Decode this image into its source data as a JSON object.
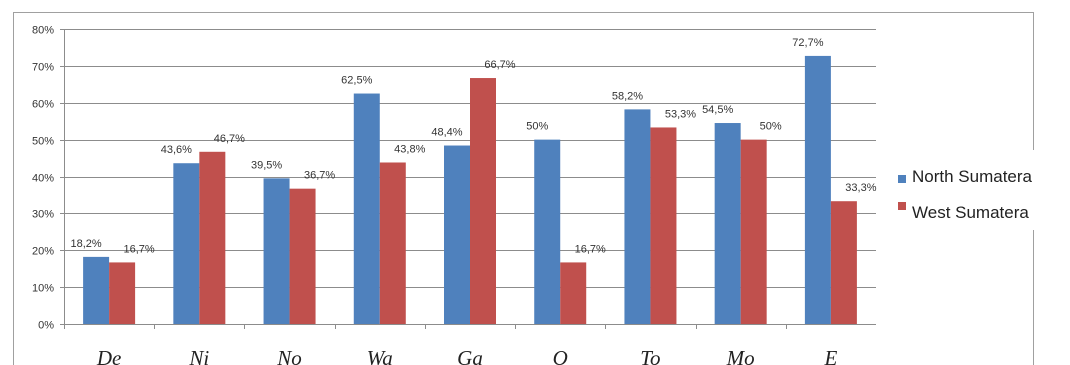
{
  "chart_data": {
    "type": "bar",
    "title": "",
    "xlabel": "",
    "ylabel": "",
    "categories": [
      "De",
      "Ni",
      "No",
      "Wa",
      "Ga",
      "O",
      "To",
      "Mo",
      "E"
    ],
    "series": [
      {
        "name": "North Sumatera",
        "color": "#4F81BD",
        "values": [
          18.2,
          43.6,
          39.5,
          62.5,
          48.4,
          50,
          58.2,
          54.5,
          72.7
        ],
        "labels": [
          "18,2%",
          "43,6%",
          "39,5%",
          "62,5%",
          "48,4%",
          "50%",
          "58,2%",
          "54,5%",
          "72,7%"
        ]
      },
      {
        "name": "West Sumatera",
        "color": "#C0504D",
        "values": [
          16.7,
          46.7,
          36.7,
          43.8,
          66.7,
          16.7,
          53.3,
          50,
          33.3
        ],
        "labels": [
          "16,7%",
          "46,7%",
          "36,7%",
          "43,8%",
          "66,7%",
          "16,7%",
          "53,3%",
          "50%",
          "33,3%"
        ]
      }
    ],
    "ylim": [
      0,
      80
    ],
    "yticks": [
      0,
      10,
      20,
      30,
      40,
      50,
      60,
      70,
      80
    ],
    "ytick_labels": [
      "0%",
      "10%",
      "20%",
      "30%",
      "40%",
      "50%",
      "60%",
      "70%",
      "80%"
    ],
    "grid": true,
    "legend_position": "right"
  }
}
